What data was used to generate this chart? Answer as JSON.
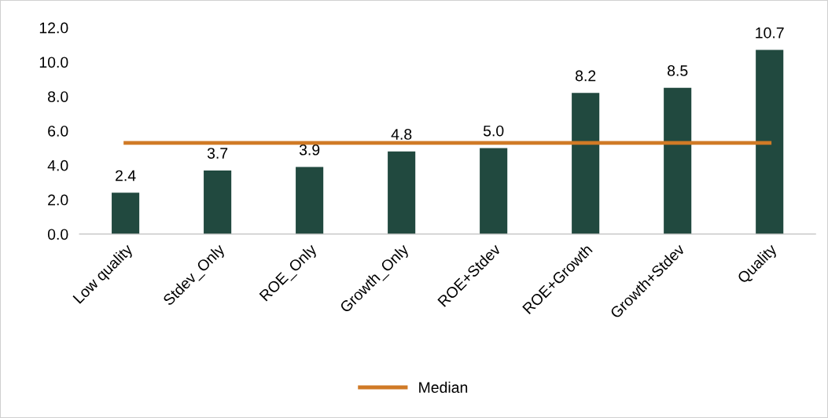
{
  "chart_data": {
    "type": "bar",
    "categories": [
      "Low quality",
      "Stdev_Only",
      "ROE_Only",
      "Growth_Only",
      "ROE+Stdev",
      "ROE+Growth",
      "Growth+Stdev",
      "Quality"
    ],
    "series": [
      {
        "color": "#21493f",
        "values": [
          2.4,
          3.7,
          3.9,
          4.8,
          5.0,
          8.2,
          8.5,
          10.7
        ],
        "value_labels": [
          "2.4",
          "3.7",
          "3.9",
          "4.8",
          "5.0",
          "8.2",
          "8.5",
          "10.7"
        ]
      },
      {
        "type": "line",
        "name": "Median",
        "color": "#d07a26",
        "values": [
          5.3,
          5.3,
          5.3,
          5.3,
          5.3,
          5.3,
          5.3,
          5.3
        ]
      }
    ],
    "ylim": [
      0,
      12
    ],
    "yticks": [
      {
        "value": 0,
        "label": "0.0"
      },
      {
        "value": 2,
        "label": "2.0"
      },
      {
        "value": 4,
        "label": "4.0"
      },
      {
        "value": 6,
        "label": "6.0"
      },
      {
        "value": 8,
        "label": "8.0"
      },
      {
        "value": 10,
        "label": "10.0"
      },
      {
        "value": 12,
        "label": "12.0"
      }
    ],
    "grid": false,
    "legend": "bottom",
    "marker": "none",
    "line_style": "solid"
  }
}
